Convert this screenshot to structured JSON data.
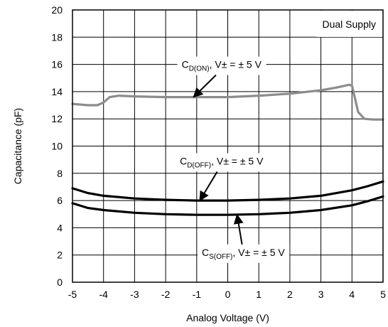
{
  "chart_data": {
    "type": "line",
    "title": "",
    "xlabel": "Analog Voltage (V)",
    "ylabel": "Capacitance (pF)",
    "xlim": [
      -5,
      5
    ],
    "ylim": [
      0,
      20
    ],
    "grid": true,
    "x_ticks": [
      "-5",
      "-4",
      "-3",
      "-2",
      "-1",
      "0",
      "1",
      "2",
      "3",
      "4",
      "5"
    ],
    "y_ticks": [
      "0",
      "2",
      "4",
      "6",
      "8",
      "10",
      "12",
      "14",
      "16",
      "18",
      "20"
    ],
    "legend_box": "Dual Supply",
    "colors": {
      "gray": "#8c8c8c",
      "black": "#000000",
      "grid": "#000000"
    },
    "series": [
      {
        "label_main": "C",
        "label_sub": "D(ON)",
        "label_rest": ", V± = ± 5 V",
        "color": "#8c8c8c",
        "points": [
          [
            -5,
            13.1
          ],
          [
            -4.5,
            13.0
          ],
          [
            -4.2,
            13.0
          ],
          [
            -4.0,
            13.2
          ],
          [
            -3.8,
            13.6
          ],
          [
            -3.5,
            13.7
          ],
          [
            -3.0,
            13.65
          ],
          [
            -2.0,
            13.6
          ],
          [
            -1.0,
            13.6
          ],
          [
            0,
            13.6
          ],
          [
            1.0,
            13.7
          ],
          [
            2.0,
            13.85
          ],
          [
            3.0,
            14.1
          ],
          [
            3.5,
            14.3
          ],
          [
            3.9,
            14.5
          ],
          [
            4.0,
            14.45
          ],
          [
            4.2,
            12.5
          ],
          [
            4.4,
            12.0
          ],
          [
            4.7,
            11.95
          ],
          [
            5.0,
            11.95
          ]
        ]
      },
      {
        "label_main": "C",
        "label_sub": "D(OFF)",
        "label_rest": ", V± = ± 5 V",
        "color": "#000000",
        "points": [
          [
            -5,
            6.9
          ],
          [
            -4.5,
            6.55
          ],
          [
            -4.0,
            6.35
          ],
          [
            -3.0,
            6.15
          ],
          [
            -2.0,
            6.05
          ],
          [
            -1.0,
            6.0
          ],
          [
            0,
            6.0
          ],
          [
            1.0,
            6.05
          ],
          [
            2.0,
            6.15
          ],
          [
            3.0,
            6.35
          ],
          [
            4.0,
            6.75
          ],
          [
            4.5,
            7.05
          ],
          [
            5.0,
            7.4
          ]
        ]
      },
      {
        "label_main": "C",
        "label_sub": "S(OFF)",
        "label_rest": ", V± = ± 5 V",
        "color": "#000000",
        "points": [
          [
            -5,
            5.8
          ],
          [
            -4.5,
            5.45
          ],
          [
            -4.0,
            5.3
          ],
          [
            -3.0,
            5.1
          ],
          [
            -2.0,
            5.0
          ],
          [
            -1.0,
            4.95
          ],
          [
            0,
            4.95
          ],
          [
            1.0,
            5.0
          ],
          [
            2.0,
            5.1
          ],
          [
            3.0,
            5.3
          ],
          [
            4.0,
            5.65
          ],
          [
            4.5,
            5.95
          ],
          [
            5.0,
            6.3
          ]
        ]
      }
    ],
    "annotations": [
      {
        "series_index": 0,
        "label_center": [
          -0.2,
          16.0
        ],
        "arrow_to": [
          -1.1,
          13.6
        ]
      },
      {
        "series_index": 1,
        "label_center": [
          -0.2,
          8.9
        ],
        "arrow_to": [
          -0.9,
          6.0
        ]
      },
      {
        "series_index": 2,
        "label_center": [
          0.5,
          2.2
        ],
        "arrow_to": [
          0.3,
          4.95
        ]
      }
    ]
  }
}
